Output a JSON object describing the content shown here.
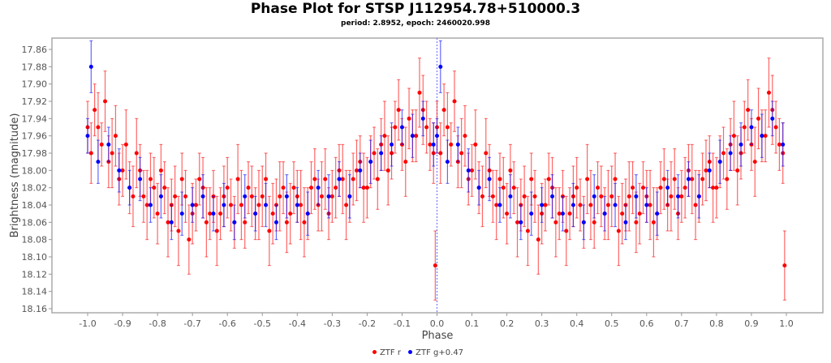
{
  "chart_data": {
    "type": "scatter",
    "title": "Phase Plot for STSP J112954.78+510000.3",
    "subtitle": "period: 2.8952, epoch: 2460020.998",
    "xlabel": "Phase",
    "ylabel": "Brightness (magnitude)",
    "xlim": [
      -1.1,
      1.1
    ],
    "ylim": [
      17.847,
      18.163
    ],
    "y_inverted": true,
    "xticks": [
      "-1.0",
      "-0.9",
      "-0.8",
      "-0.7",
      "-0.6",
      "-0.5",
      "-0.4",
      "-0.3",
      "-0.2",
      "-0.1",
      "0.0",
      "0.1",
      "0.2",
      "0.3",
      "0.4",
      "0.5",
      "0.6",
      "0.7",
      "0.8",
      "0.9",
      "1.0"
    ],
    "yticks": [
      "17.86",
      "17.88",
      "17.90",
      "17.92",
      "17.94",
      "17.96",
      "17.98",
      "18.00",
      "18.02",
      "18.04",
      "18.06",
      "18.08",
      "18.10",
      "18.12",
      "18.14",
      "18.16"
    ],
    "phase_repeated_minus_one": true,
    "legend_position": "bottom",
    "series": [
      {
        "name": "ZTF r",
        "color": "#ff0000",
        "points": [
          [
            0.0,
            17.95,
            0.03
          ],
          [
            0.01,
            17.98,
            0.035
          ],
          [
            0.02,
            17.93,
            0.03
          ],
          [
            0.03,
            17.95,
            0.04
          ],
          [
            0.04,
            17.97,
            0.025
          ],
          [
            0.05,
            17.92,
            0.035
          ],
          [
            0.06,
            17.99,
            0.03
          ],
          [
            0.07,
            17.98,
            0.04
          ],
          [
            0.08,
            17.96,
            0.035
          ],
          [
            0.09,
            18.01,
            0.03
          ],
          [
            0.1,
            18.0,
            0.03
          ],
          [
            0.11,
            17.97,
            0.04
          ],
          [
            0.12,
            18.02,
            0.03
          ],
          [
            0.13,
            18.03,
            0.035
          ],
          [
            0.14,
            17.98,
            0.04
          ],
          [
            0.15,
            18.0,
            0.03
          ],
          [
            0.16,
            18.03,
            0.03
          ],
          [
            0.17,
            18.04,
            0.04
          ],
          [
            0.18,
            18.01,
            0.03
          ],
          [
            0.19,
            18.02,
            0.035
          ],
          [
            0.2,
            18.05,
            0.035
          ],
          [
            0.21,
            18.0,
            0.03
          ],
          [
            0.22,
            18.02,
            0.03
          ],
          [
            0.23,
            18.06,
            0.04
          ],
          [
            0.24,
            18.04,
            0.03
          ],
          [
            0.25,
            18.03,
            0.035
          ],
          [
            0.26,
            18.07,
            0.04
          ],
          [
            0.27,
            18.01,
            0.03
          ],
          [
            0.28,
            18.03,
            0.03
          ],
          [
            0.29,
            18.08,
            0.04
          ],
          [
            0.3,
            18.05,
            0.035
          ],
          [
            0.31,
            18.04,
            0.03
          ],
          [
            0.32,
            18.01,
            0.03
          ],
          [
            0.33,
            18.02,
            0.035
          ],
          [
            0.34,
            18.06,
            0.04
          ],
          [
            0.35,
            18.05,
            0.03
          ],
          [
            0.36,
            18.03,
            0.03
          ],
          [
            0.37,
            18.07,
            0.04
          ],
          [
            0.38,
            18.05,
            0.03
          ],
          [
            0.39,
            18.03,
            0.035
          ],
          [
            0.4,
            18.02,
            0.035
          ],
          [
            0.41,
            18.04,
            0.03
          ],
          [
            0.42,
            18.06,
            0.03
          ],
          [
            0.43,
            18.01,
            0.04
          ],
          [
            0.44,
            18.04,
            0.04
          ],
          [
            0.45,
            18.06,
            0.03
          ],
          [
            0.46,
            18.02,
            0.03
          ],
          [
            0.47,
            18.03,
            0.035
          ],
          [
            0.48,
            18.05,
            0.03
          ],
          [
            0.49,
            18.04,
            0.04
          ],
          [
            0.5,
            18.03,
            0.035
          ],
          [
            0.51,
            18.01,
            0.03
          ],
          [
            0.52,
            18.07,
            0.04
          ],
          [
            0.53,
            18.05,
            0.035
          ],
          [
            0.54,
            18.04,
            0.03
          ],
          [
            0.55,
            18.03,
            0.04
          ],
          [
            0.56,
            18.02,
            0.03
          ],
          [
            0.57,
            18.06,
            0.035
          ],
          [
            0.58,
            18.05,
            0.035
          ],
          [
            0.59,
            18.02,
            0.03
          ],
          [
            0.6,
            18.03,
            0.03
          ],
          [
            0.61,
            18.04,
            0.04
          ],
          [
            0.62,
            18.06,
            0.04
          ],
          [
            0.63,
            18.05,
            0.03
          ],
          [
            0.64,
            18.02,
            0.03
          ],
          [
            0.65,
            18.01,
            0.035
          ],
          [
            0.66,
            18.04,
            0.03
          ],
          [
            0.67,
            18.03,
            0.04
          ],
          [
            0.68,
            18.01,
            0.035
          ],
          [
            0.69,
            18.05,
            0.03
          ],
          [
            0.7,
            18.03,
            0.03
          ],
          [
            0.71,
            18.02,
            0.035
          ],
          [
            0.72,
            18.0,
            0.03
          ],
          [
            0.73,
            18.01,
            0.04
          ],
          [
            0.74,
            18.04,
            0.04
          ],
          [
            0.75,
            18.03,
            0.03
          ],
          [
            0.76,
            18.01,
            0.03
          ],
          [
            0.77,
            18.0,
            0.035
          ],
          [
            0.78,
            17.99,
            0.03
          ],
          [
            0.79,
            18.02,
            0.04
          ],
          [
            0.8,
            18.02,
            0.035
          ],
          [
            0.81,
            17.99,
            0.03
          ],
          [
            0.82,
            17.98,
            0.03
          ],
          [
            0.83,
            18.01,
            0.035
          ],
          [
            0.84,
            17.97,
            0.03
          ],
          [
            0.85,
            17.96,
            0.04
          ],
          [
            0.86,
            18.0,
            0.04
          ],
          [
            0.87,
            17.98,
            0.03
          ],
          [
            0.88,
            17.95,
            0.03
          ],
          [
            0.89,
            17.93,
            0.035
          ],
          [
            0.9,
            17.97,
            0.03
          ],
          [
            0.91,
            17.99,
            0.04
          ],
          [
            0.92,
            17.94,
            0.035
          ],
          [
            0.93,
            17.96,
            0.03
          ],
          [
            0.94,
            17.96,
            0.03
          ],
          [
            0.95,
            17.91,
            0.04
          ],
          [
            0.96,
            17.93,
            0.04
          ],
          [
            0.97,
            17.95,
            0.03
          ],
          [
            0.98,
            17.97,
            0.03
          ],
          [
            0.99,
            17.98,
            0.035
          ],
          [
            0.995,
            18.11,
            0.04
          ]
        ]
      },
      {
        "name": "ZTF g+0.47",
        "color": "#0000ff",
        "points": [
          [
            0.0,
            17.96,
            0.02
          ],
          [
            0.01,
            17.88,
            0.03
          ],
          [
            0.03,
            17.99,
            0.025
          ],
          [
            0.06,
            17.97,
            0.02
          ],
          [
            0.09,
            18.0,
            0.025
          ],
          [
            0.12,
            18.02,
            0.02
          ],
          [
            0.15,
            18.01,
            0.025
          ],
          [
            0.18,
            18.04,
            0.02
          ],
          [
            0.21,
            18.03,
            0.025
          ],
          [
            0.24,
            18.06,
            0.02
          ],
          [
            0.27,
            18.05,
            0.025
          ],
          [
            0.3,
            18.04,
            0.02
          ],
          [
            0.33,
            18.03,
            0.025
          ],
          [
            0.36,
            18.05,
            0.02
          ],
          [
            0.39,
            18.04,
            0.025
          ],
          [
            0.42,
            18.06,
            0.02
          ],
          [
            0.45,
            18.03,
            0.025
          ],
          [
            0.48,
            18.05,
            0.02
          ],
          [
            0.51,
            18.04,
            0.025
          ],
          [
            0.54,
            18.06,
            0.02
          ],
          [
            0.57,
            18.03,
            0.025
          ],
          [
            0.6,
            18.04,
            0.02
          ],
          [
            0.63,
            18.05,
            0.025
          ],
          [
            0.66,
            18.02,
            0.02
          ],
          [
            0.69,
            18.03,
            0.025
          ],
          [
            0.72,
            18.01,
            0.02
          ],
          [
            0.75,
            18.03,
            0.025
          ],
          [
            0.78,
            18.0,
            0.02
          ],
          [
            0.81,
            17.99,
            0.025
          ],
          [
            0.84,
            17.98,
            0.02
          ],
          [
            0.87,
            17.97,
            0.025
          ],
          [
            0.9,
            17.95,
            0.02
          ],
          [
            0.93,
            17.96,
            0.025
          ],
          [
            0.96,
            17.94,
            0.02
          ],
          [
            0.99,
            17.97,
            0.025
          ]
        ]
      }
    ]
  }
}
